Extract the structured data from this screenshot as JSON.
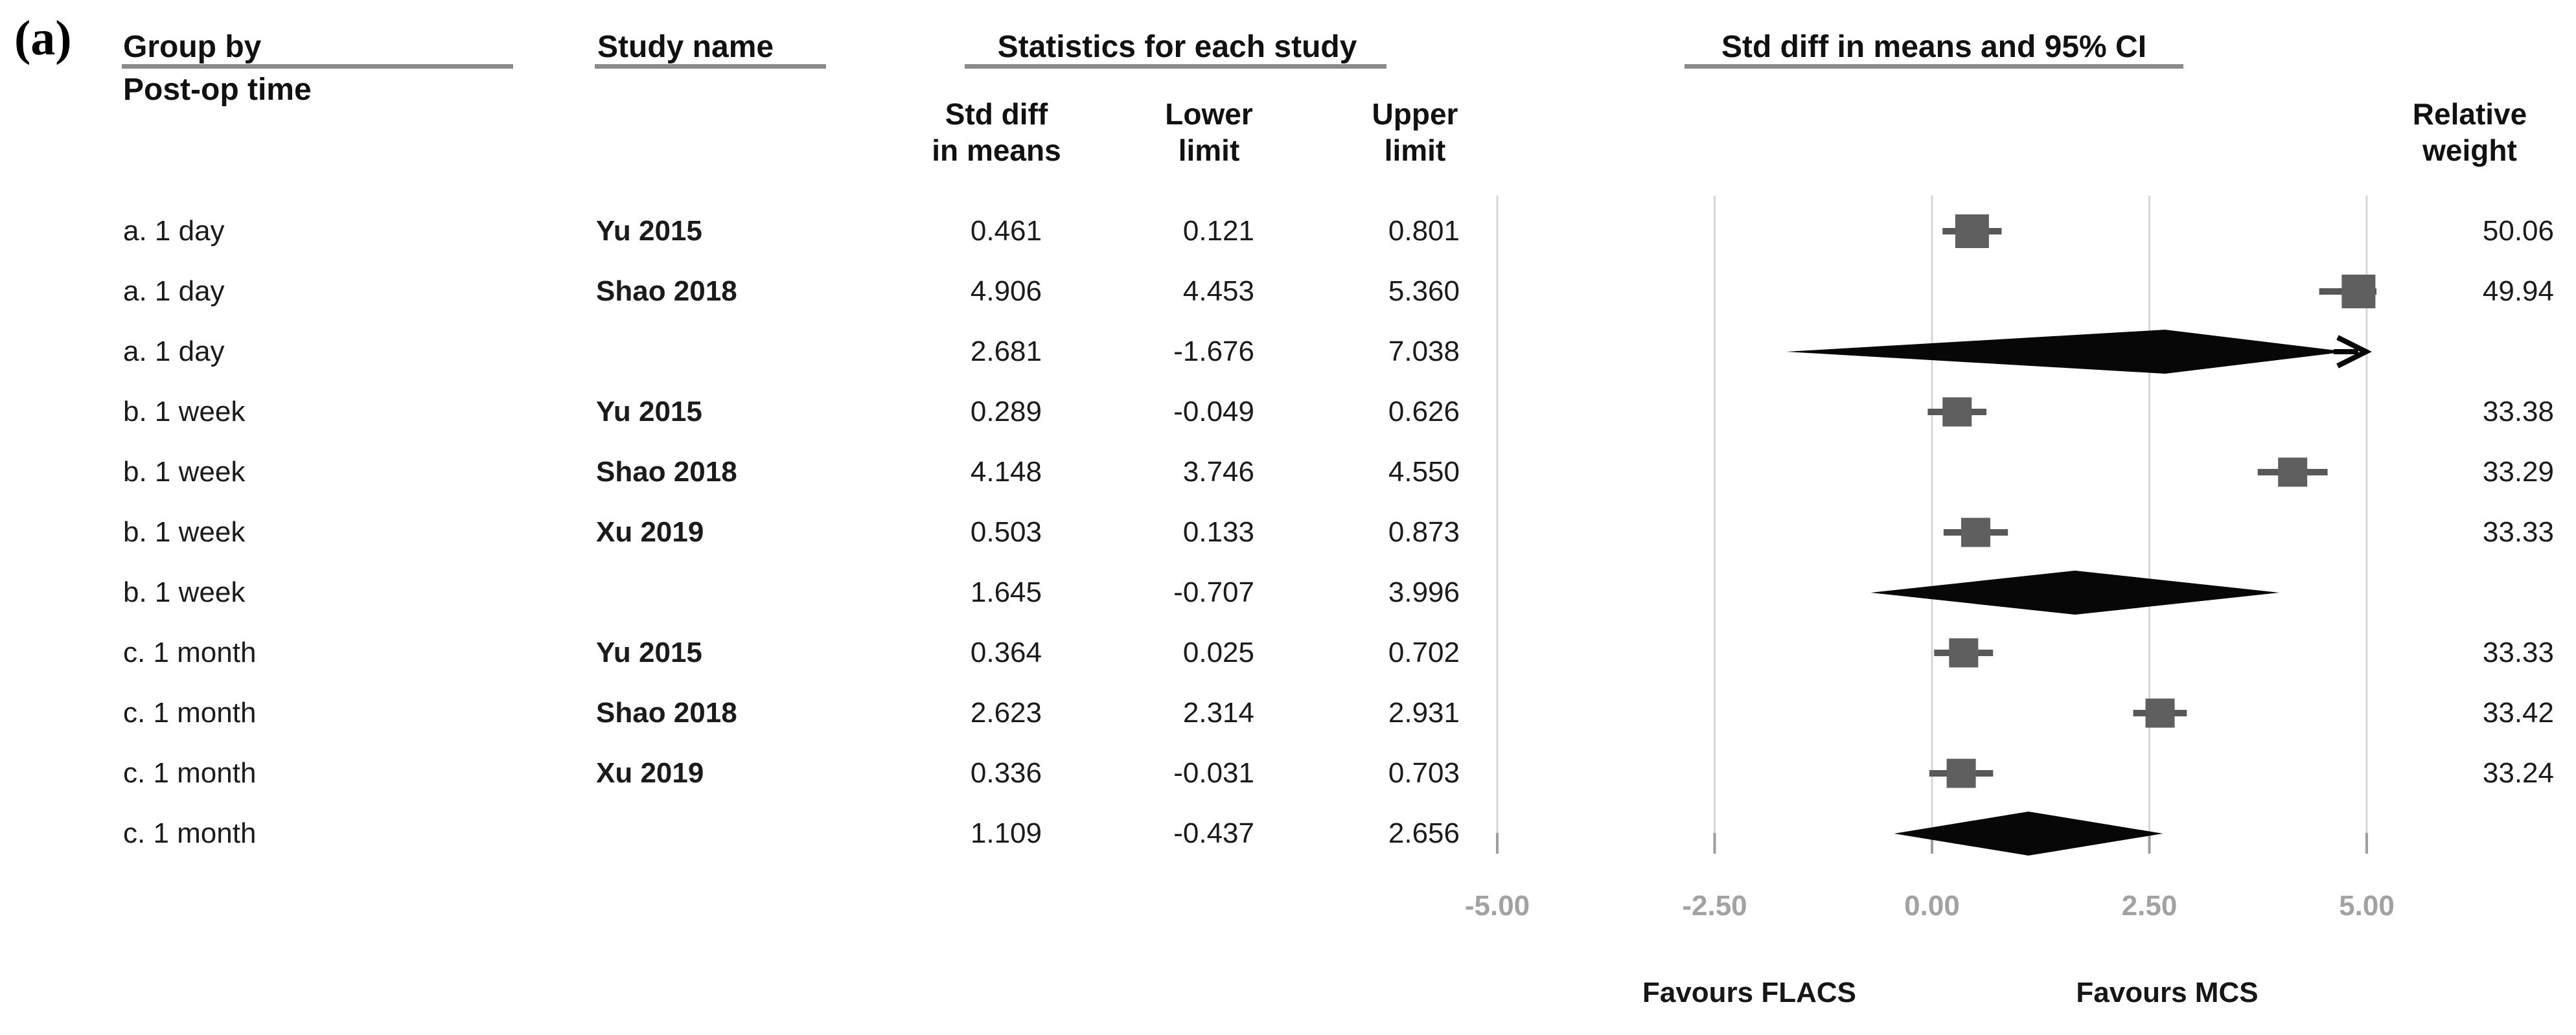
{
  "panel_label": "(a)",
  "header": {
    "group_by": "Group by",
    "group_by_sub": "Post-op time",
    "study_name": "Study name",
    "statistics": "Statistics for each study",
    "col_std_diff": "Std diff\nin means",
    "col_lower": "Lower\nlimit",
    "col_upper": "Upper\nlimit",
    "ci_plot": "Std diff in means and 95% CI",
    "relative_weight": "Relative\nweight"
  },
  "table": {
    "rows": [
      {
        "group": "a. 1 day",
        "study": "Yu 2015",
        "std": "0.461",
        "lower": "0.121",
        "upper": "0.801",
        "weight": "50.06"
      },
      {
        "group": "a. 1 day",
        "study": "Shao 2018",
        "std": "4.906",
        "lower": "4.453",
        "upper": "5.360",
        "weight": "49.94"
      },
      {
        "group": "a. 1 day",
        "study": "",
        "std": "2.681",
        "lower": "-1.676",
        "upper": "7.038",
        "weight": ""
      },
      {
        "group": "b. 1 week",
        "study": "Yu 2015",
        "std": "0.289",
        "lower": "-0.049",
        "upper": "0.626",
        "weight": "33.38"
      },
      {
        "group": "b. 1 week",
        "study": "Shao 2018",
        "std": "4.148",
        "lower": "3.746",
        "upper": "4.550",
        "weight": "33.29"
      },
      {
        "group": "b. 1 week",
        "study": "Xu 2019",
        "std": "0.503",
        "lower": "0.133",
        "upper": "0.873",
        "weight": "33.33"
      },
      {
        "group": "b. 1 week",
        "study": "",
        "std": "1.645",
        "lower": "-0.707",
        "upper": "3.996",
        "weight": ""
      },
      {
        "group": "c. 1 month",
        "study": "Yu 2015",
        "std": "0.364",
        "lower": "0.025",
        "upper": "0.702",
        "weight": "33.33"
      },
      {
        "group": "c. 1 month",
        "study": "Shao 2018",
        "std": "2.623",
        "lower": "2.314",
        "upper": "2.931",
        "weight": "33.42"
      },
      {
        "group": "c. 1 month",
        "study": "Xu 2019",
        "std": "0.336",
        "lower": "-0.031",
        "upper": "0.703",
        "weight": "33.24"
      },
      {
        "group": "c. 1 month",
        "study": "",
        "std": "1.109",
        "lower": "-0.437",
        "upper": "2.656",
        "weight": ""
      }
    ]
  },
  "axis": {
    "tick_labels": [
      "-5.00",
      "-2.50",
      "0.00",
      "2.50",
      "5.00"
    ],
    "tick_values": [
      -5,
      -2.5,
      0,
      2.5,
      5
    ],
    "favours_left": "Favours FLACS",
    "favours_right": "Favours MCS"
  },
  "chart_data": {
    "type": "scatter",
    "variant": "forest_plot",
    "title": "Std diff in means and 95% CI",
    "effect_measure": "Std diff in means",
    "grouping": "Post-op time",
    "x_axis": {
      "min": -5,
      "max": 5,
      "ticks": [
        -5,
        -2.5,
        0,
        2.5,
        5
      ],
      "tick_labels": [
        "-5.00",
        "-2.50",
        "0.00",
        "2.50",
        "5.00"
      ]
    },
    "favours_left": "Favours FLACS",
    "favours_right": "Favours MCS",
    "grid": "vertical-only",
    "legend_position": "none",
    "rows": [
      {
        "group": "a. 1 day",
        "study": "Yu 2015",
        "row_type": "study",
        "std_diff": 0.461,
        "lower": 0.121,
        "upper": 0.801,
        "relative_weight": 50.06
      },
      {
        "group": "a. 1 day",
        "study": "Shao 2018",
        "row_type": "study",
        "std_diff": 4.906,
        "lower": 4.453,
        "upper": 5.36,
        "relative_weight": 49.94
      },
      {
        "group": "a. 1 day",
        "study": null,
        "row_type": "subgroup_summary",
        "std_diff": 2.681,
        "lower": -1.676,
        "upper": 7.038,
        "relative_weight": null,
        "upper_clipped_arrow": true
      },
      {
        "group": "b. 1 week",
        "study": "Yu 2015",
        "row_type": "study",
        "std_diff": 0.289,
        "lower": -0.049,
        "upper": 0.626,
        "relative_weight": 33.38
      },
      {
        "group": "b. 1 week",
        "study": "Shao 2018",
        "row_type": "study",
        "std_diff": 4.148,
        "lower": 3.746,
        "upper": 4.55,
        "relative_weight": 33.29
      },
      {
        "group": "b. 1 week",
        "study": "Xu 2019",
        "row_type": "study",
        "std_diff": 0.503,
        "lower": 0.133,
        "upper": 0.873,
        "relative_weight": 33.33
      },
      {
        "group": "b. 1 week",
        "study": null,
        "row_type": "subgroup_summary",
        "std_diff": 1.645,
        "lower": -0.707,
        "upper": 3.996,
        "relative_weight": null
      },
      {
        "group": "c. 1 month",
        "study": "Yu 2015",
        "row_type": "study",
        "std_diff": 0.364,
        "lower": 0.025,
        "upper": 0.702,
        "relative_weight": 33.33
      },
      {
        "group": "c. 1 month",
        "study": "Shao 2018",
        "row_type": "study",
        "std_diff": 2.623,
        "lower": 2.314,
        "upper": 2.931,
        "relative_weight": 33.42
      },
      {
        "group": "c. 1 month",
        "study": "Xu 2019",
        "row_type": "study",
        "std_diff": 0.336,
        "lower": -0.031,
        "upper": 0.703,
        "relative_weight": 33.24
      },
      {
        "group": "c. 1 month",
        "study": null,
        "row_type": "subgroup_summary",
        "std_diff": 1.109,
        "lower": -0.437,
        "upper": 2.656,
        "relative_weight": null
      }
    ]
  },
  "colors": {
    "marker_square": "#5f5f5f",
    "whisker": "#585858",
    "diamond": "#070707",
    "gridline": "#d7d7d7",
    "tick": "#9e9e9e",
    "tick_label": "#a2a2a2",
    "underline": "#8a8a8a",
    "text": "#161616"
  }
}
